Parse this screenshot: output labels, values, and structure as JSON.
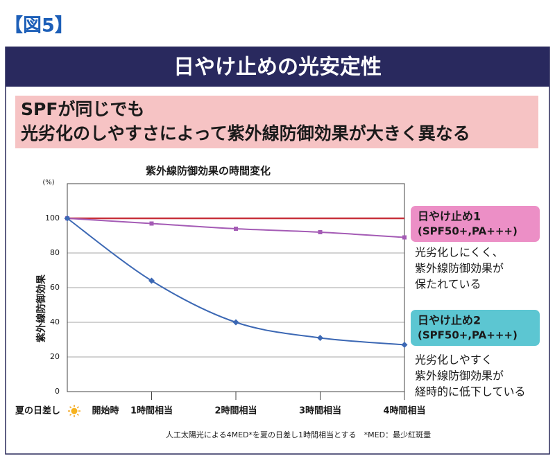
{
  "figure_label": "【図5】",
  "header": "日やけ止めの光安定性",
  "headline": [
    "SPFが同じでも",
    "光劣化のしやすさによって紫外線防御効果が大きく異なる"
  ],
  "chart_data": {
    "type": "line",
    "title": "紫外線防御効果の時間変化",
    "y_unit": "(%)",
    "ylabel": "紫外線防御効果",
    "x_prefix": "夏の日差し",
    "categories": [
      "開始時",
      "1時間相当",
      "2時間相当",
      "3時間相当",
      "4時間相当"
    ],
    "ylim": [
      0,
      120
    ],
    "yticks": [
      0,
      20,
      40,
      60,
      80,
      100
    ],
    "grid": true,
    "reference_line": {
      "value": 100,
      "color": "#c8323c"
    },
    "series": [
      {
        "name": "日やけ止め1",
        "spec": "(SPF50+,PA+++)",
        "color": "#a45bb5",
        "box_color": "#ec8fc6",
        "note": [
          "光劣化しにくく、",
          "紫外線防御効果が",
          "保たれている"
        ],
        "values": [
          100,
          97,
          94,
          92,
          89
        ]
      },
      {
        "name": "日やけ止め2",
        "spec": "(SPF50+,PA+++)",
        "color": "#3c68b4",
        "box_color": "#5cc6d2",
        "note": [
          "光劣化しやすく",
          "紫外線防御効果が",
          "経時的に低下している"
        ],
        "values": [
          100,
          64,
          40,
          31,
          27
        ]
      }
    ],
    "footnote": "人工太陽光による4MED*を夏の日差し1時間相当とする　*MED：最少紅斑量"
  }
}
